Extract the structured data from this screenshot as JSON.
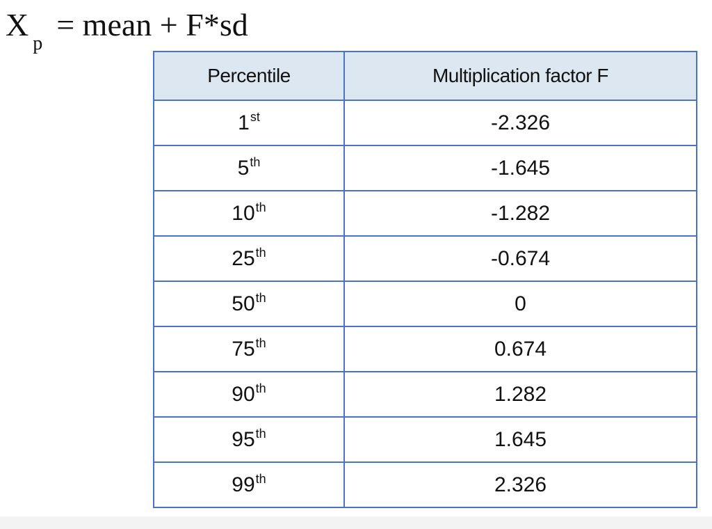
{
  "formula": {
    "variable": "X",
    "subscript": "p",
    "rhs": "= mean + F*sd"
  },
  "table": {
    "headers": [
      "Percentile",
      "Multiplication factor F"
    ],
    "rows": [
      {
        "percentile": "1",
        "suffix": "st",
        "factor": "-2.326"
      },
      {
        "percentile": "5",
        "suffix": "th",
        "factor": "-1.645"
      },
      {
        "percentile": "10",
        "suffix": "th",
        "factor": "-1.282"
      },
      {
        "percentile": "25",
        "suffix": "th",
        "factor": "-0.674"
      },
      {
        "percentile": "50",
        "suffix": "th",
        "factor": "0"
      },
      {
        "percentile": "75",
        "suffix": "th",
        "factor": "0.674"
      },
      {
        "percentile": "90",
        "suffix": "th",
        "factor": "1.282"
      },
      {
        "percentile": "95",
        "suffix": "th",
        "factor": "1.645"
      },
      {
        "percentile": "99",
        "suffix": "th",
        "factor": "2.326"
      }
    ]
  },
  "colors": {
    "border": "#4a72c9",
    "header_bg": "#dde7f1"
  }
}
